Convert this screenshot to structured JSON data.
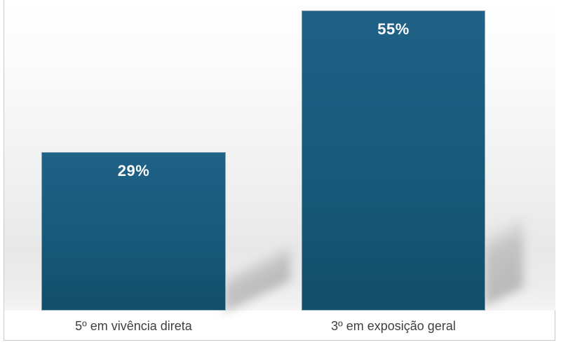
{
  "chart_data": {
    "type": "bar",
    "title": "",
    "xlabel": "",
    "ylabel": "",
    "categories": [
      "5º em vivência direta",
      "3º em exposição geral"
    ],
    "values": [
      29,
      55
    ],
    "data_labels": [
      "29%",
      "55%"
    ],
    "ylim": [
      0,
      57
    ],
    "grid": false,
    "legend_position": "none",
    "colors": {
      "bar_fill_top": "#206287",
      "bar_fill_bottom": "#134e69",
      "data_label_text": "#ffffff",
      "category_label_text": "#3f3f3f",
      "frame_border": "#c9c9c9",
      "background_top": "#ffffff",
      "background_gray": "#e8e8e8"
    }
  }
}
